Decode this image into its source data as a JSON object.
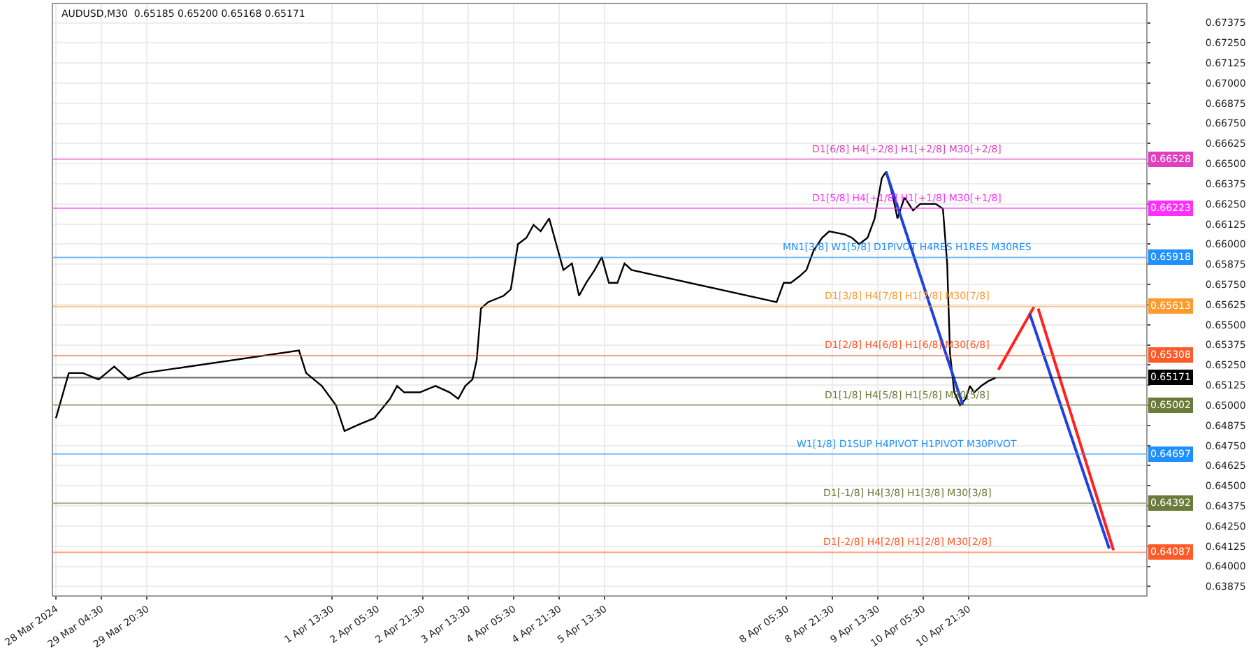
{
  "chart_data": {
    "type": "line",
    "title": "AUDUSD,M30  0.65185 0.65200 0.65168 0.65171",
    "xlim": [
      "2024-03-28T11:30",
      "2024-04-13T12:00"
    ],
    "ylim": [
      0.6382,
      0.6749
    ],
    "xticks": [
      {
        "value": "2024-03-28T12:30",
        "label": "28 Mar 2024"
      },
      {
        "value": "2024-03-29T04:30",
        "label": "29 Mar 04:30"
      },
      {
        "value": "2024-03-29T20:30",
        "label": "29 Mar 20:30"
      },
      {
        "value": "2024-04-01T13:30",
        "label": "1 Apr 13:30"
      },
      {
        "value": "2024-04-02T05:30",
        "label": "2 Apr 05:30"
      },
      {
        "value": "2024-04-02T21:30",
        "label": "2 Apr 21:30"
      },
      {
        "value": "2024-04-03T13:30",
        "label": "3 Apr 13:30"
      },
      {
        "value": "2024-04-04T05:30",
        "label": "4 Apr 05:30"
      },
      {
        "value": "2024-04-04T21:30",
        "label": "4 Apr 21:30"
      },
      {
        "value": "2024-04-05T13:30",
        "label": "5 Apr 13:30"
      },
      {
        "value": "2024-04-08T05:30",
        "label": "8 Apr 05:30"
      },
      {
        "value": "2024-04-08T21:30",
        "label": "8 Apr 21:30"
      },
      {
        "value": "2024-04-09T13:30",
        "label": "9 Apr 13:30"
      },
      {
        "value": "2024-04-10T05:30",
        "label": "10 Apr 05:30"
      },
      {
        "value": "2024-04-10T21:30",
        "label": "10 Apr 21:30"
      }
    ],
    "yticks": [
      {
        "value": 0.63875,
        "label": "0.63875"
      },
      {
        "value": 0.64,
        "label": "0.64000"
      },
      {
        "value": 0.64125,
        "label": "0.64125"
      },
      {
        "value": 0.6425,
        "label": "0.64250"
      },
      {
        "value": 0.64375,
        "label": "0.64375"
      },
      {
        "value": 0.645,
        "label": "0.64500"
      },
      {
        "value": 0.64625,
        "label": "0.64625"
      },
      {
        "value": 0.6475,
        "label": "0.64750"
      },
      {
        "value": 0.64875,
        "label": "0.64875"
      },
      {
        "value": 0.65,
        "label": "0.65000"
      },
      {
        "value": 0.65125,
        "label": "0.65125"
      },
      {
        "value": 0.6525,
        "label": "0.65250"
      },
      {
        "value": 0.65375,
        "label": "0.65375"
      },
      {
        "value": 0.655,
        "label": "0.65500"
      },
      {
        "value": 0.65625,
        "label": "0.65625"
      },
      {
        "value": 0.6575,
        "label": "0.65750"
      },
      {
        "value": 0.65875,
        "label": "0.65875"
      },
      {
        "value": 0.66,
        "label": "0.66000"
      },
      {
        "value": 0.66125,
        "label": "0.66125"
      },
      {
        "value": 0.6625,
        "label": "0.66250"
      },
      {
        "value": 0.66375,
        "label": "0.66375"
      },
      {
        "value": 0.665,
        "label": "0.66500"
      },
      {
        "value": 0.66625,
        "label": "0.66625"
      },
      {
        "value": 0.6675,
        "label": "0.66750"
      },
      {
        "value": 0.66875,
        "label": "0.66875"
      },
      {
        "value": 0.67,
        "label": "0.67000"
      },
      {
        "value": 0.67125,
        "label": "0.67125"
      },
      {
        "value": 0.6725,
        "label": "0.67250"
      },
      {
        "value": 0.67375,
        "label": "0.67375"
      }
    ],
    "grid": true,
    "series": [
      {
        "color": "#000000",
        "x": [
          "2024-03-28T12:30",
          "2024-03-28T17:00",
          "2024-03-28T22:00",
          "2024-03-29T03:30",
          "2024-03-29T09:00",
          "2024-03-29T14:00",
          "2024-03-29T19:30",
          "2024-04-01T02:00",
          "2024-04-01T04:30",
          "2024-04-01T10:00",
          "2024-04-01T15:00",
          "2024-04-01T18:00",
          "2024-04-01T23:00",
          "2024-04-02T04:30",
          "2024-04-02T10:00",
          "2024-04-02T12:30",
          "2024-04-02T15:00",
          "2024-04-02T20:30",
          "2024-04-03T02:00",
          "2024-04-03T07:00",
          "2024-04-03T10:00",
          "2024-04-03T12:30",
          "2024-04-03T15:00",
          "2024-04-03T16:30",
          "2024-04-03T18:00",
          "2024-04-03T20:30",
          "2024-04-04T02:00",
          "2024-04-04T04:30",
          "2024-04-04T07:00",
          "2024-04-04T10:00",
          "2024-04-04T12:30",
          "2024-04-04T15:00",
          "2024-04-04T18:00",
          "2024-04-04T20:30",
          "2024-04-04T23:00",
          "2024-04-05T02:00",
          "2024-04-05T04:30",
          "2024-04-05T07:00",
          "2024-04-05T10:00",
          "2024-04-05T12:30",
          "2024-04-05T15:00",
          "2024-04-05T18:00",
          "2024-04-05T20:30",
          "2024-04-05T23:00",
          "2024-04-08T02:00",
          "2024-04-08T04:30",
          "2024-04-08T07:00",
          "2024-04-08T10:00",
          "2024-04-08T12:30",
          "2024-04-08T15:00",
          "2024-04-08T18:00",
          "2024-04-08T20:30",
          "2024-04-09T02:00",
          "2024-04-09T04:30",
          "2024-04-09T07:00",
          "2024-04-09T10:00",
          "2024-04-09T12:30",
          "2024-04-09T15:00",
          "2024-04-09T16:30",
          "2024-04-09T19:00",
          "2024-04-09T20:30",
          "2024-04-09T23:00",
          "2024-04-10T02:00",
          "2024-04-10T04:30",
          "2024-04-10T07:00",
          "2024-04-10T10:00",
          "2024-04-10T12:30",
          "2024-04-10T14:00",
          "2024-04-10T15:00",
          "2024-04-10T16:30",
          "2024-04-10T18:30",
          "2024-04-10T20:30",
          "2024-04-10T22:00",
          "2024-04-10T23:30",
          "2024-04-11T02:00",
          "2024-04-11T04:30",
          "2024-04-11T07:00"
        ],
        "values": [
          0.6492,
          0.652,
          0.652,
          0.6516,
          0.6524,
          0.6516,
          0.652,
          0.6534,
          0.652,
          0.6512,
          0.65,
          0.6484,
          0.6488,
          0.6492,
          0.6504,
          0.6512,
          0.6508,
          0.6508,
          0.6512,
          0.6508,
          0.6504,
          0.6512,
          0.6516,
          0.6528,
          0.656,
          0.6564,
          0.6568,
          0.6572,
          0.66,
          0.6604,
          0.6612,
          0.6608,
          0.6616,
          0.66,
          0.6584,
          0.6588,
          0.6568,
          0.6576,
          0.6584,
          0.6592,
          0.6576,
          0.6576,
          0.6588,
          0.6584,
          0.6564,
          0.6576,
          0.6576,
          0.658,
          0.6584,
          0.6596,
          0.6604,
          0.6608,
          0.6606,
          0.6604,
          0.66,
          0.6604,
          0.6616,
          0.6641,
          0.6645,
          0.6629,
          0.6616,
          0.6629,
          0.6621,
          0.6625,
          0.6625,
          0.6625,
          0.6622,
          0.6588,
          0.6532,
          0.6508,
          0.65,
          0.6504,
          0.6512,
          0.6508,
          0.6512,
          0.6515,
          0.6517
        ]
      },
      {
        "color": "#2040e0",
        "x": [
          "2024-04-09T16:30",
          "2024-04-10T19:30"
        ],
        "values": [
          0.6645,
          0.65
        ]
      },
      {
        "color": "#ff2020",
        "x": [
          "2024-04-11T08:00",
          "2024-04-11T20:30"
        ],
        "values": [
          0.6522,
          0.6561
        ]
      },
      {
        "color": "#2040e0",
        "x": [
          "2024-04-11T19:00",
          "2024-04-12T23:00"
        ],
        "values": [
          0.6557,
          0.6411
        ]
      },
      {
        "color": "#ff2020",
        "x": [
          "2024-04-11T22:00",
          "2024-04-13T00:30"
        ],
        "values": [
          0.656,
          0.641
        ]
      }
    ],
    "ref_lines": [
      {
        "axis": "y",
        "value": 0.66528,
        "label": "0.66528",
        "color": "#e040c0"
      },
      {
        "axis": "y",
        "value": 0.66223,
        "label": "0.66223",
        "color": "#ff30ff"
      },
      {
        "axis": "y",
        "value": 0.65918,
        "label": "0.65918",
        "color": "#1e90ff"
      },
      {
        "axis": "y",
        "value": 0.65613,
        "label": "0.65613",
        "color": "#ff9a30"
      },
      {
        "axis": "y",
        "value": 0.65308,
        "label": "0.65308",
        "color": "#ff5a28"
      },
      {
        "axis": "y",
        "value": 0.65171,
        "label": "0.65171",
        "color": "#000000"
      },
      {
        "axis": "y",
        "value": 0.65002,
        "label": "0.65002",
        "color": "#6b7b3a"
      },
      {
        "axis": "y",
        "value": 0.64697,
        "label": "0.64697",
        "color": "#1e90ff"
      },
      {
        "axis": "y",
        "value": 0.64392,
        "label": "0.64392",
        "color": "#6b7b3a"
      },
      {
        "axis": "y",
        "value": 0.64087,
        "label": "0.64087",
        "color": "#ff5a28"
      }
    ],
    "annotations": [
      {
        "text": "D1[6/8] H4[+2/8] H1[+2/8] M30[+2/8]",
        "x": "2024-04-10T00:00",
        "y": 0.66528
      },
      {
        "text": "D1[5/8] H4[+1/8] H1[+1/8] M30[+1/8]",
        "x": "2024-04-10T00:00",
        "y": 0.66223
      },
      {
        "text": "MN1[3/8] W1[5/8] D1PIVOT H4RES H1RES M30RES",
        "x": "2024-04-10T00:00",
        "y": 0.65918
      },
      {
        "text": "D1[3/8] H4[7/8] H1[7/8] M30[7/8]",
        "x": "2024-04-10T00:00",
        "y": 0.65613
      },
      {
        "text": "D1[2/8] H4[6/8] H1[6/8] M30[6/8]",
        "x": "2024-04-10T00:00",
        "y": 0.65308
      },
      {
        "text": "D1[1/8] H4[5/8] H1[5/8] M30[5/8]",
        "x": "2024-04-10T00:00",
        "y": 0.65002
      },
      {
        "text": "W1[1/8] D1SUP H4PIVOT H1PIVOT M30PIVOT",
        "x": "2024-04-10T00:00",
        "y": 0.64697
      },
      {
        "text": "D1[-1/8] H4[3/8] H1[3/8] M30[3/8]",
        "x": "2024-04-10T00:00",
        "y": 0.64392
      },
      {
        "text": "D1[-2/8] H4[2/8] H1[2/8] M30[2/8]",
        "x": "2024-04-10T00:00",
        "y": 0.64087
      }
    ]
  }
}
